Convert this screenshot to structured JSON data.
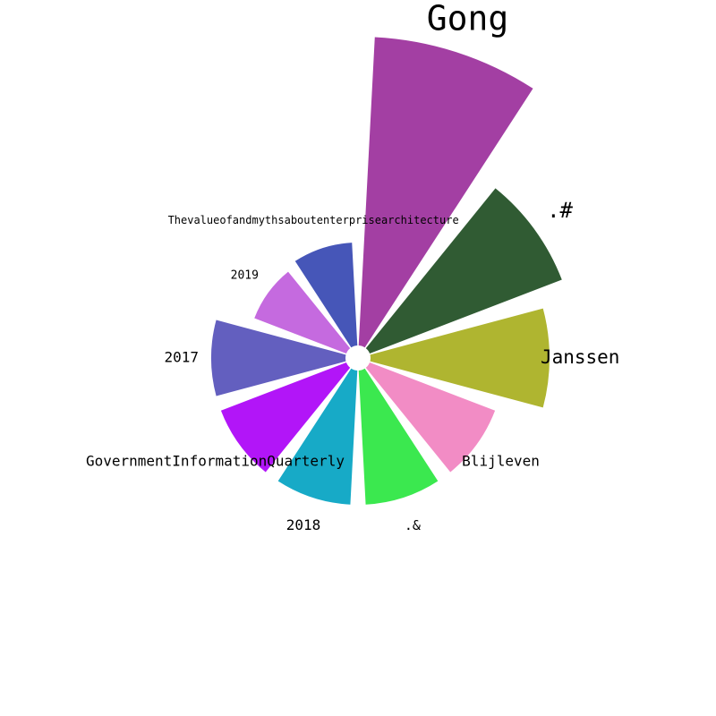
{
  "chart_data": {
    "type": "bar",
    "subtype": "radial",
    "title": "",
    "categories": [
      "Gong",
      ".#",
      "Janssen",
      "Blijleven",
      ".&",
      "2018",
      "GovernmentInformationQuarterly",
      "2017",
      "2019",
      "Thevalueofandmythsaboutenterprisearchitecture"
    ],
    "values": [
      345,
      230,
      200,
      150,
      150,
      150,
      150,
      150,
      110,
      115
    ],
    "colors": [
      "#a33fa3",
      "#305b33",
      "#afb530",
      "#f28cc5",
      "#3be84f",
      "#17aac7",
      "#b215f8",
      "#635fbf",
      "#c56adf",
      "#4656b8"
    ],
    "label_font_sizes": [
      38,
      24,
      21,
      16,
      15,
      16,
      16,
      16,
      13,
      12
    ],
    "grid": false,
    "legend": "none"
  }
}
